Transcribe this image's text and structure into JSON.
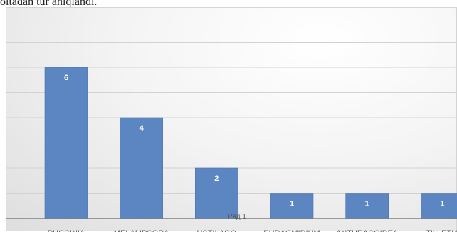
{
  "document": {
    "text_above": "oltadan tur aniqlandi."
  },
  "chart_data": {
    "type": "bar",
    "categories": [
      "PUCCINIA",
      "MELAMPSORA",
      "USTILAGO",
      "PHRAGMIDIUM",
      "ANTHRACOIDEA",
      "TILLETIA"
    ],
    "series": [
      {
        "name": "Ряд 1",
        "values": [
          6,
          4,
          2,
          1,
          1,
          1
        ]
      }
    ],
    "data_labels": [
      "6",
      "4",
      "2",
      "1",
      "1",
      "1"
    ],
    "title": "",
    "xlabel": "",
    "ylabel": "",
    "ylim": [
      0,
      7
    ],
    "grid": true,
    "legend_position": "bottom",
    "colors": {
      "bar": "#5b86c1",
      "bar_edge": "#4a72a8",
      "grid": "#d2d2d2",
      "axis": "#7f7f7f",
      "label": "#ffffff",
      "tick_text": "#595959"
    }
  }
}
